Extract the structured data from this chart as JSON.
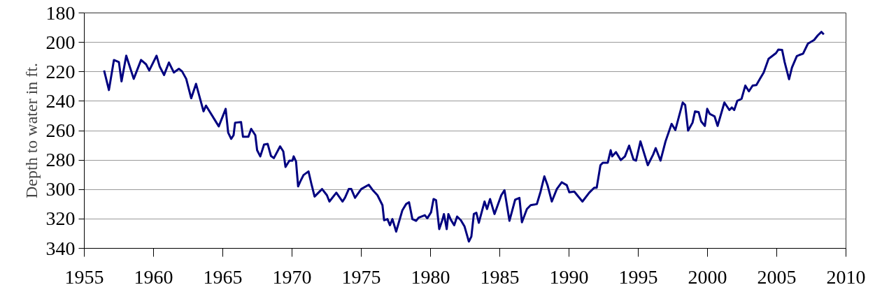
{
  "chart_data": {
    "type": "line",
    "ylabel": "Depth to water in ft.",
    "xlim": [
      1955,
      2010
    ],
    "xticks": [
      1955,
      1960,
      1965,
      1970,
      1975,
      1980,
      1985,
      1990,
      1995,
      2000,
      2005,
      2010
    ],
    "ylim": [
      340,
      180
    ],
    "yticks": [
      180,
      200,
      220,
      240,
      260,
      280,
      300,
      320,
      340
    ],
    "grid": "y",
    "marker": "none",
    "line_style": "solid",
    "series": [
      {
        "color": "#000080",
        "x": [
          1956.43,
          1956.78,
          1957.14,
          1957.5,
          1957.69,
          1958.03,
          1958.57,
          1959.1,
          1959.46,
          1959.69,
          1960.22,
          1960.44,
          1960.76,
          1961.11,
          1961.47,
          1961.83,
          1962.06,
          1962.36,
          1962.72,
          1963.07,
          1963.61,
          1963.79,
          1964.71,
          1965.21,
          1965.39,
          1965.61,
          1965.78,
          1965.89,
          1966.32,
          1966.46,
          1966.85,
          1967.05,
          1967.35,
          1967.48,
          1967.71,
          1967.98,
          1968.24,
          1968.48,
          1968.69,
          1969.14,
          1969.37,
          1969.53,
          1969.81,
          1970.03,
          1970.12,
          1970.29,
          1970.44,
          1970.6,
          1970.83,
          1971.19,
          1971.4,
          1971.63,
          1972.17,
          1972.52,
          1972.7,
          1973.2,
          1973.65,
          1973.83,
          1974.1,
          1974.28,
          1974.55,
          1975.0,
          1975.54,
          1975.81,
          1976.17,
          1976.53,
          1976.65,
          1976.89,
          1977.07,
          1977.25,
          1977.52,
          1977.97,
          1978.24,
          1978.45,
          1978.69,
          1978.96,
          1979.14,
          1979.59,
          1979.77,
          1980.04,
          1980.22,
          1980.4,
          1980.63,
          1980.85,
          1980.97,
          1981.17,
          1981.29,
          1981.47,
          1981.71,
          1981.92,
          1982.19,
          1982.46,
          1982.77,
          1982.95,
          1983.13,
          1983.31,
          1983.49,
          1983.9,
          1984.08,
          1984.3,
          1984.62,
          1985.11,
          1985.34,
          1985.7,
          1986.11,
          1986.42,
          1986.6,
          1986.96,
          1987.23,
          1987.68,
          1987.95,
          1988.22,
          1988.45,
          1988.76,
          1989.12,
          1989.48,
          1989.84,
          1990.02,
          1990.38,
          1990.97,
          1991.46,
          1991.82,
          1992.0,
          1992.27,
          1992.45,
          1992.8,
          1993.01,
          1993.12,
          1993.39,
          1993.74,
          1994.04,
          1994.34,
          1994.66,
          1994.84,
          1995.16,
          1995.69,
          1996.08,
          1996.26,
          1996.61,
          1996.97,
          1997.41,
          1997.68,
          1998.21,
          1998.39,
          1998.6,
          1998.92,
          1999.1,
          1999.36,
          1999.54,
          1999.81,
          1999.98,
          2000.16,
          2000.51,
          2000.73,
          2001.22,
          2001.58,
          2001.76,
          2001.93,
          2002.15,
          2002.46,
          2002.73,
          2002.99,
          2003.26,
          2003.53,
          2003.79,
          2004.06,
          2004.41,
          2004.95,
          2005.12,
          2005.39,
          2005.57,
          2005.89,
          2006.1,
          2006.45,
          2006.63,
          2006.9,
          2007.25,
          2007.7,
          2007.96,
          2008.23,
          2008.4
        ],
        "values": [
          219.1,
          232.4,
          212.0,
          213.4,
          226.5,
          209.1,
          224.8,
          212.0,
          214.9,
          219.1,
          209.1,
          216.3,
          222.2,
          213.7,
          220.5,
          218.0,
          219.7,
          224.8,
          238.0,
          228.2,
          246.9,
          243.0,
          257.1,
          245.2,
          261.4,
          265.6,
          263.1,
          254.6,
          254.2,
          264.2,
          264.2,
          258.8,
          263.1,
          273.3,
          277.5,
          269.5,
          269.0,
          277.2,
          278.7,
          270.7,
          274.1,
          284.7,
          280.4,
          280.4,
          277.5,
          280.9,
          297.9,
          294.5,
          290.2,
          287.7,
          296.2,
          304.8,
          299.7,
          303.9,
          308.2,
          302.2,
          308.2,
          305.5,
          299.7,
          299.7,
          305.7,
          299.7,
          296.8,
          300.2,
          303.9,
          310.7,
          320.9,
          320.1,
          324.3,
          320.1,
          328.6,
          314.1,
          309.9,
          308.7,
          320.1,
          321.3,
          319.2,
          317.5,
          319.6,
          315.5,
          306.5,
          307.3,
          326.9,
          320.9,
          316.7,
          326.9,
          316.7,
          320.6,
          324.3,
          318.4,
          320.9,
          325.2,
          335.4,
          332.0,
          316.7,
          315.8,
          322.6,
          308.2,
          313.3,
          306.5,
          316.7,
          303.9,
          300.5,
          321.3,
          307.0,
          305.7,
          322.3,
          313.3,
          310.7,
          309.9,
          301.4,
          291.1,
          297.1,
          308.2,
          299.7,
          295.1,
          297.1,
          301.9,
          301.4,
          308.2,
          302.2,
          298.8,
          298.8,
          283.5,
          281.8,
          281.8,
          273.3,
          277.5,
          274.6,
          280.0,
          277.5,
          270.2,
          279.7,
          280.4,
          267.3,
          283.5,
          276.2,
          271.9,
          280.4,
          267.3,
          255.4,
          259.6,
          240.9,
          242.6,
          260.0,
          254.6,
          246.9,
          247.4,
          253.7,
          256.8,
          245.2,
          248.6,
          250.3,
          256.8,
          240.9,
          246.0,
          244.3,
          246.0,
          239.8,
          238.4,
          229.4,
          233.3,
          229.4,
          229.0,
          224.8,
          220.5,
          211.2,
          207.3,
          204.9,
          205.2,
          213.4,
          225.1,
          217.1,
          209.4,
          208.6,
          207.7,
          200.9,
          198.4,
          195.3,
          192.9,
          194.6
        ]
      }
    ]
  }
}
